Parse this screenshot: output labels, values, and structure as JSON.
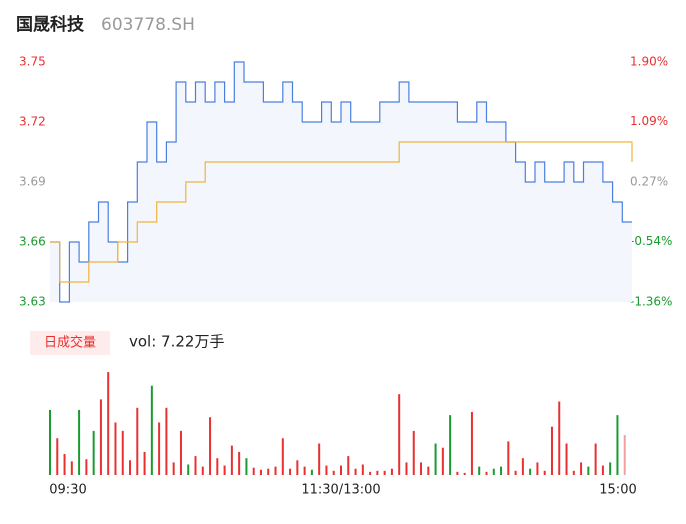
{
  "header": {
    "name": "国晟科技",
    "code": "603778.SH"
  },
  "chart_data": [
    {
      "type": "line",
      "grid": false,
      "xlim": [
        0,
        240
      ],
      "xticks": [
        {
          "value": 0,
          "label": "09:30"
        },
        {
          "value": 120,
          "label": "11:30/13:00"
        },
        {
          "value": 240,
          "label": "15:00"
        }
      ],
      "ylim": [
        3.63,
        3.75
      ],
      "yticks": [
        3.75,
        3.72,
        3.69,
        3.66,
        3.63
      ],
      "ytick_colors": [
        "#e83030",
        "#e83030",
        "#999999",
        "#1a9a30",
        "#1a9a30"
      ],
      "y2lim": [
        -1.36,
        1.9
      ],
      "y2ticks": [
        {
          "value": 1.9,
          "label": "1.90%"
        },
        {
          "value": 1.09,
          "label": "1.09%"
        },
        {
          "value": 0.27,
          "label": "0.27%"
        },
        {
          "value": -0.54,
          "label": "-0.54%"
        },
        {
          "value": -1.36,
          "label": "-1.36%"
        }
      ],
      "y2tick_colors": [
        "#e83030",
        "#e83030",
        "#999999",
        "#1a9a30",
        "#1a9a30"
      ],
      "x": [
        0,
        4,
        8,
        12,
        16,
        20,
        24,
        28,
        32,
        36,
        40,
        44,
        48,
        52,
        56,
        60,
        64,
        68,
        72,
        76,
        80,
        84,
        88,
        92,
        96,
        100,
        104,
        108,
        112,
        116,
        120,
        124,
        128,
        132,
        136,
        140,
        144,
        148,
        152,
        156,
        160,
        164,
        168,
        172,
        176,
        180,
        184,
        188,
        192,
        196,
        200,
        204,
        208,
        212,
        216,
        220,
        224,
        228,
        232,
        236,
        240
      ],
      "series": [
        {
          "color": "#4a7fe0",
          "values": [
            3.66,
            3.63,
            3.66,
            3.65,
            3.67,
            3.68,
            3.66,
            3.65,
            3.68,
            3.7,
            3.72,
            3.7,
            3.71,
            3.74,
            3.73,
            3.74,
            3.73,
            3.74,
            3.73,
            3.75,
            3.74,
            3.74,
            3.73,
            3.73,
            3.74,
            3.73,
            3.72,
            3.72,
            3.73,
            3.72,
            3.73,
            3.72,
            3.72,
            3.72,
            3.73,
            3.73,
            3.74,
            3.73,
            3.73,
            3.73,
            3.73,
            3.73,
            3.72,
            3.72,
            3.73,
            3.72,
            3.72,
            3.71,
            3.7,
            3.69,
            3.7,
            3.69,
            3.69,
            3.7,
            3.69,
            3.7,
            3.7,
            3.69,
            3.68,
            3.67,
            3.67
          ]
        },
        {
          "color": "#f0b43c",
          "values": [
            3.66,
            3.64,
            3.64,
            3.64,
            3.65,
            3.65,
            3.65,
            3.66,
            3.66,
            3.67,
            3.67,
            3.68,
            3.68,
            3.68,
            3.69,
            3.69,
            3.7,
            3.7,
            3.7,
            3.7,
            3.7,
            3.7,
            3.7,
            3.7,
            3.7,
            3.7,
            3.7,
            3.7,
            3.7,
            3.7,
            3.7,
            3.7,
            3.7,
            3.7,
            3.7,
            3.7,
            3.71,
            3.71,
            3.71,
            3.71,
            3.71,
            3.71,
            3.71,
            3.71,
            3.71,
            3.71,
            3.71,
            3.71,
            3.71,
            3.71,
            3.71,
            3.71,
            3.71,
            3.71,
            3.71,
            3.71,
            3.71,
            3.71,
            3.71,
            3.71,
            3.7
          ]
        }
      ]
    },
    {
      "type": "bar",
      "label": "日成交量",
      "annotation": "vol: 7.22万手",
      "ylim": [
        0,
        1000
      ],
      "x": [
        0,
        3,
        6,
        9,
        12,
        15,
        18,
        21,
        24,
        27,
        30,
        33,
        36,
        39,
        42,
        45,
        48,
        51,
        54,
        57,
        60,
        63,
        66,
        69,
        72,
        75,
        78,
        81,
        84,
        87,
        90,
        93,
        96,
        99,
        102,
        105,
        108,
        111,
        114,
        117,
        120,
        123,
        126,
        129,
        132,
        135,
        138,
        141,
        144,
        147,
        150,
        153,
        156,
        159,
        162,
        165,
        168,
        171,
        174,
        177,
        180,
        183,
        186,
        189,
        192,
        195,
        198,
        201,
        204,
        207,
        210,
        213,
        216,
        219,
        222,
        225,
        228,
        231,
        234,
        237
      ],
      "values": [
        620,
        350,
        200,
        130,
        620,
        150,
        420,
        720,
        980,
        500,
        420,
        140,
        640,
        220,
        850,
        500,
        640,
        120,
        420,
        100,
        180,
        80,
        550,
        160,
        90,
        280,
        220,
        160,
        70,
        50,
        60,
        80,
        350,
        60,
        140,
        80,
        50,
        300,
        90,
        40,
        90,
        180,
        60,
        100,
        30,
        40,
        40,
        60,
        770,
        120,
        420,
        120,
        80,
        300,
        260,
        570,
        30,
        20,
        600,
        80,
        30,
        60,
        80,
        320,
        40,
        160,
        60,
        120,
        40,
        460,
        700,
        300,
        40,
        120,
        80,
        300,
        90,
        120,
        570,
        380
      ],
      "colors": [
        "#1a9a30",
        "#e83030",
        "#e83030",
        "#e83030",
        "#1a9a30",
        "#e83030",
        "#1a9a30",
        "#e83030",
        "#e83030",
        "#e83030",
        "#e83030",
        "#e83030",
        "#e83030",
        "#e83030",
        "#1a9a30",
        "#e83030",
        "#e83030",
        "#e83030",
        "#e83030",
        "#1a9a30",
        "#e83030",
        "#e83030",
        "#e83030",
        "#e83030",
        "#e83030",
        "#e83030",
        "#e83030",
        "#1a9a30",
        "#e83030",
        "#e83030",
        "#e83030",
        "#e83030",
        "#e83030",
        "#e83030",
        "#e83030",
        "#e83030",
        "#1a9a30",
        "#e83030",
        "#e83030",
        "#e83030",
        "#e83030",
        "#e83030",
        "#e83030",
        "#e83030",
        "#e83030",
        "#e83030",
        "#e83030",
        "#e83030",
        "#e83030",
        "#e83030",
        "#e83030",
        "#e83030",
        "#e83030",
        "#1a9a30",
        "#e83030",
        "#1a9a30",
        "#e83030",
        "#e83030",
        "#e83030",
        "#1a9a30",
        "#e83030",
        "#1a9a30",
        "#1a9a30",
        "#e83030",
        "#e83030",
        "#e83030",
        "#1a9a30",
        "#e83030",
        "#e83030",
        "#e83030",
        "#e83030",
        "#e83030",
        "#e83030",
        "#e83030",
        "#1a9a30",
        "#e83030",
        "#e83030",
        "#1a9a30",
        "#1a9a30",
        "#f0a0a0"
      ]
    }
  ]
}
